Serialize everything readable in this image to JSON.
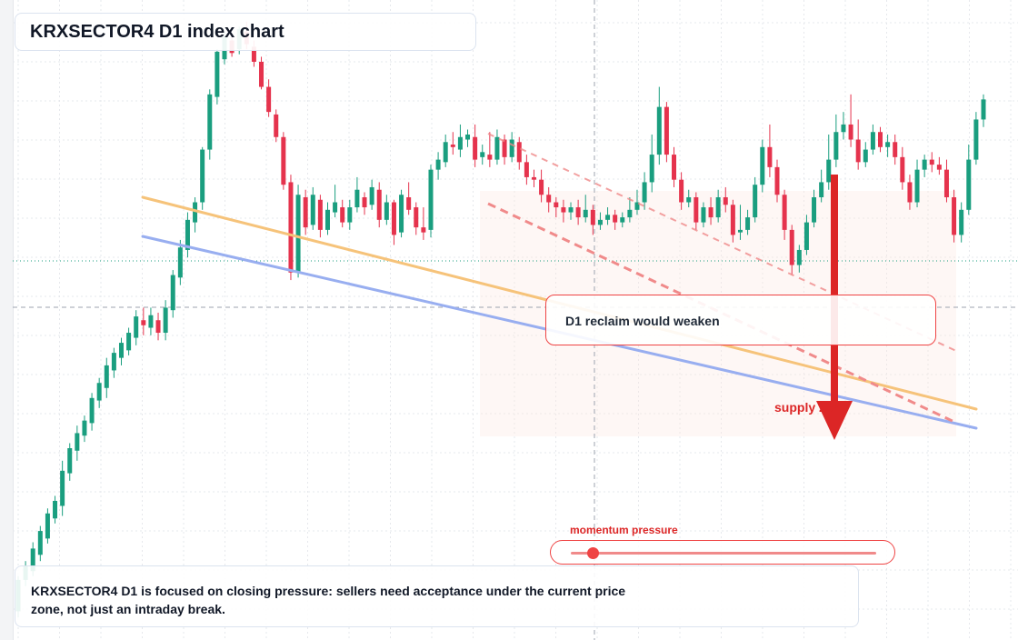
{
  "header": {
    "title": "KRXSECTOR4 D1 index chart"
  },
  "annotations": {
    "zone_label": "D1 reclaim would weaken",
    "supply_label": "supply zone",
    "momentum_label": "momentum pressure",
    "momentum_level": 0.07
  },
  "note": {
    "text": "KRXSECTOR4 D1 is focused on closing pressure: sellers need acceptance under the current price zone, not just an intraday break."
  },
  "colors": {
    "up": "#1a9e7f",
    "down": "#e5334d",
    "orange_line": "#f6c37a",
    "blue_line": "#98aef0",
    "channel": "#f08a8a",
    "arrow": "#dc2626"
  },
  "chart_data": {
    "type": "candlestick",
    "title": "KRXSECTOR4 D1 index chart",
    "timeframe": "D1",
    "price_axis": "unlabeled",
    "grid": true,
    "candles": [
      [
        520,
        545,
        515,
        548
      ],
      [
        545,
        556,
        540,
        560
      ],
      [
        552,
        570,
        548,
        575
      ],
      [
        565,
        584,
        560,
        588
      ],
      [
        578,
        598,
        574,
        602
      ],
      [
        594,
        608,
        590,
        612
      ],
      [
        604,
        632,
        596,
        640
      ],
      [
        630,
        650,
        624,
        654
      ],
      [
        648,
        662,
        640,
        668
      ],
      [
        660,
        672,
        655,
        676
      ],
      [
        670,
        690,
        664,
        694
      ],
      [
        688,
        702,
        682,
        706
      ],
      [
        698,
        716,
        690,
        722
      ],
      [
        712,
        726,
        706,
        730
      ],
      [
        722,
        734,
        716,
        738
      ],
      [
        728,
        742,
        724,
        746
      ],
      [
        738,
        755,
        732,
        760
      ],
      [
        752,
        748,
        740,
        762
      ],
      [
        746,
        756,
        740,
        762
      ],
      [
        752,
        742,
        736,
        758
      ],
      [
        742,
        762,
        736,
        768
      ],
      [
        760,
        788,
        754,
        792
      ],
      [
        786,
        810,
        780,
        816
      ],
      [
        808,
        832,
        802,
        838
      ],
      [
        830,
        846,
        822,
        850
      ],
      [
        846,
        888,
        840,
        890
      ],
      [
        888,
        932,
        880,
        936
      ],
      [
        930,
        966,
        924,
        968
      ],
      [
        960,
        978,
        956,
        982
      ],
      [
        975,
        965,
        962,
        978
      ],
      [
        968,
        984,
        964,
        986
      ],
      [
        982,
        972,
        968,
        990
      ],
      [
        970,
        958,
        954,
        975
      ],
      [
        958,
        938,
        936,
        962
      ],
      [
        938,
        918,
        914,
        944
      ],
      [
        916,
        898,
        894,
        920
      ],
      [
        898,
        860,
        856,
        902
      ],
      [
        862,
        790,
        784,
        868
      ],
      [
        790,
        852,
        786,
        860
      ],
      [
        850,
        826,
        820,
        856
      ],
      [
        828,
        852,
        824,
        858
      ],
      [
        848,
        824,
        818,
        852
      ],
      [
        824,
        840,
        820,
        846
      ],
      [
        838,
        846,
        834,
        860
      ],
      [
        842,
        830,
        826,
        848
      ],
      [
        830,
        842,
        824,
        848
      ],
      [
        842,
        856,
        838,
        866
      ],
      [
        850,
        842,
        836,
        854
      ],
      [
        844,
        858,
        840,
        864
      ],
      [
        856,
        832,
        826,
        862
      ],
      [
        832,
        846,
        828,
        852
      ],
      [
        846,
        820,
        812,
        848
      ],
      [
        822,
        852,
        818,
        856
      ],
      [
        850,
        840,
        836,
        862
      ],
      [
        842,
        826,
        820,
        846
      ],
      [
        826,
        822,
        816,
        842
      ],
      [
        824,
        872,
        818,
        876
      ],
      [
        872,
        880,
        864,
        886
      ],
      [
        878,
        894,
        874,
        900
      ],
      [
        892,
        890,
        884,
        902
      ],
      [
        888,
        898,
        882,
        908
      ],
      [
        896,
        900,
        890,
        904
      ],
      [
        898,
        880,
        874,
        908
      ],
      [
        882,
        886,
        876,
        892
      ],
      [
        884,
        880,
        874,
        902
      ],
      [
        880,
        898,
        876,
        904
      ],
      [
        896,
        882,
        876,
        900
      ],
      [
        882,
        896,
        878,
        902
      ],
      [
        894,
        878,
        872,
        898
      ],
      [
        878,
        866,
        860,
        884
      ],
      [
        866,
        864,
        858,
        872
      ],
      [
        864,
        852,
        846,
        872
      ],
      [
        852,
        846,
        838,
        858
      ],
      [
        846,
        842,
        834,
        850
      ],
      [
        842,
        838,
        830,
        848
      ],
      [
        838,
        842,
        832,
        846
      ],
      [
        842,
        834,
        828,
        848
      ],
      [
        834,
        840,
        830,
        852
      ],
      [
        840,
        828,
        820,
        844
      ],
      [
        828,
        832,
        824,
        838
      ],
      [
        832,
        836,
        828,
        842
      ],
      [
        836,
        830,
        824,
        840
      ],
      [
        830,
        834,
        826,
        838
      ],
      [
        834,
        840,
        830,
        850
      ],
      [
        840,
        846,
        836,
        856
      ],
      [
        846,
        862,
        840,
        870
      ],
      [
        862,
        884,
        854,
        900
      ],
      [
        884,
        922,
        876,
        938
      ],
      [
        922,
        884,
        878,
        926
      ],
      [
        884,
        864,
        858,
        890
      ],
      [
        864,
        846,
        840,
        870
      ],
      [
        846,
        850,
        842,
        856
      ],
      [
        850,
        830,
        824,
        854
      ],
      [
        830,
        842,
        826,
        846
      ],
      [
        842,
        834,
        828,
        850
      ],
      [
        834,
        850,
        830,
        856
      ],
      [
        850,
        844,
        838,
        858
      ],
      [
        844,
        820,
        814,
        848
      ],
      [
        822,
        824,
        816,
        844
      ],
      [
        824,
        834,
        820,
        840
      ],
      [
        834,
        860,
        830,
        866
      ],
      [
        860,
        890,
        854,
        896
      ],
      [
        890,
        874,
        866,
        908
      ],
      [
        874,
        852,
        846,
        880
      ],
      [
        852,
        824,
        816,
        856
      ],
      [
        824,
        796,
        788,
        828
      ],
      [
        796,
        808,
        790,
        812
      ],
      [
        808,
        830,
        804,
        836
      ],
      [
        830,
        850,
        826,
        856
      ],
      [
        850,
        862,
        846,
        872
      ],
      [
        862,
        880,
        856,
        900
      ],
      [
        880,
        902,
        874,
        916
      ],
      [
        902,
        908,
        896,
        918
      ],
      [
        908,
        896,
        890,
        932
      ],
      [
        896,
        878,
        872,
        912
      ],
      [
        878,
        888,
        874,
        894
      ],
      [
        888,
        902,
        884,
        908
      ],
      [
        902,
        890,
        886,
        906
      ],
      [
        890,
        894,
        882,
        900
      ],
      [
        894,
        882,
        876,
        900
      ],
      [
        882,
        862,
        856,
        890
      ],
      [
        862,
        846,
        840,
        868
      ],
      [
        846,
        872,
        842,
        880
      ],
      [
        872,
        880,
        866,
        884
      ],
      [
        880,
        876,
        870,
        886
      ],
      [
        876,
        872,
        868,
        882
      ],
      [
        872,
        850,
        846,
        880
      ],
      [
        850,
        820,
        814,
        856
      ],
      [
        820,
        840,
        814,
        846
      ],
      [
        840,
        880,
        836,
        892
      ],
      [
        880,
        912,
        876,
        918
      ],
      [
        912,
        928,
        906,
        932
      ]
    ],
    "overlays": [
      {
        "name": "orange trendline"
      },
      {
        "name": "blue trendline"
      },
      {
        "name": "upper channel line"
      },
      {
        "name": "lower channel line"
      }
    ]
  }
}
